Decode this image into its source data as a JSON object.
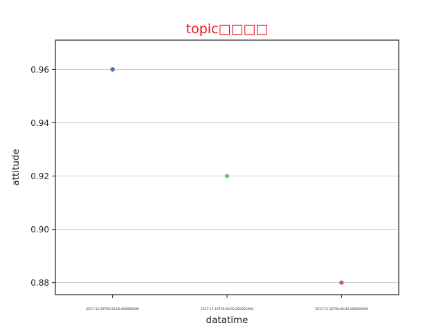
{
  "chart_data": {
    "type": "scatter",
    "title": "topic□□□□",
    "title_color": "#e8111d",
    "xlabel": "datatime",
    "ylabel": "attitude",
    "categories": [
      "2017-11-09T00:00:00.000000000",
      "2017-11-10T00:00:00.000000000",
      "2017-11-15T00:00:00.000000000"
    ],
    "values": [
      0.96,
      0.92,
      0.88
    ],
    "point_colors": [
      "#4c72b0",
      "#6acc65",
      "#d65f5f"
    ],
    "ylim": [
      0.8755,
      0.971
    ],
    "yticks": [
      0.88,
      0.9,
      0.92,
      0.94,
      0.96
    ],
    "ytick_labels": [
      "0.88",
      "0.90",
      "0.92",
      "0.94",
      "0.96"
    ],
    "grid": "horizontal",
    "grid_color": "#cccccc",
    "axis_color": "#222222"
  }
}
